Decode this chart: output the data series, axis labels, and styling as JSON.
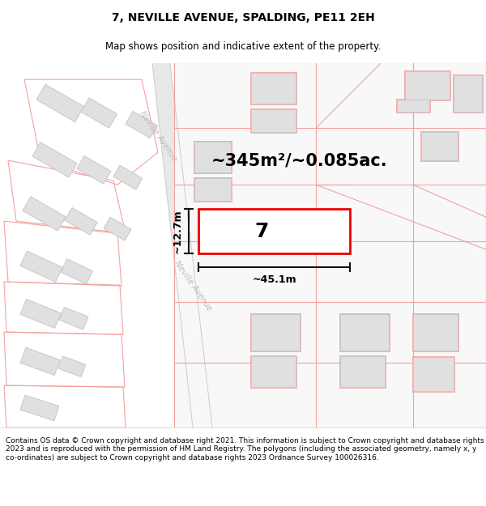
{
  "title": "7, NEVILLE AVENUE, SPALDING, PE11 2EH",
  "subtitle": "Map shows position and indicative extent of the property.",
  "area_text": "~345m²/~0.085ac.",
  "width_label": "~45.1m",
  "height_label": "~12.7m",
  "plot_number": "7",
  "street_label": "Neville Avenue",
  "street_label2": "Neville Avenue",
  "copyright_text": "Contains OS data © Crown copyright and database right 2021. This information is subject to Crown copyright and database rights 2023 and is reproduced with the permission of HM Land Registry. The polygons (including the associated geometry, namely x, y co-ordinates) are subject to Crown copyright and database rights 2023 Ordnance Survey 100026316.",
  "map_bg": "#f7f7f7",
  "building_fill": "#e0e0e0",
  "building_edge": "#c8c8c8",
  "red_color": "#ee0000",
  "pink_color": "#f5a0a0",
  "dim_color": "#111111",
  "street_color": "#bbbbbb",
  "title_fontsize": 10,
  "subtitle_fontsize": 8.5,
  "area_fontsize": 15,
  "plot_fontsize": 18,
  "dim_fontsize": 9,
  "copyright_fontsize": 6.5
}
